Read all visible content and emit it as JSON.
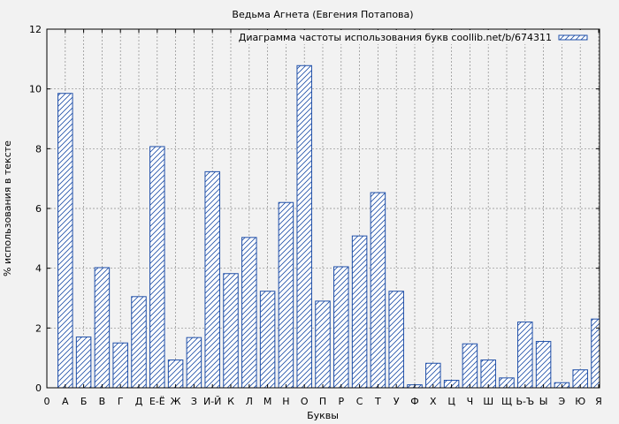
{
  "chart_data": {
    "type": "bar",
    "title": "Ведьма Агнета (Евгения Потапова)",
    "xlabel": "Буквы",
    "ylabel": "% использования в тексте",
    "legend": "Диаграмма частоты использования букв coollib.net/b/674311",
    "legend_position": "top-right",
    "grid": true,
    "ylim": [
      0,
      12
    ],
    "yticks": [
      0,
      2,
      4,
      6,
      8,
      10,
      12
    ],
    "x_start_label": "0",
    "categories": [
      "А",
      "Б",
      "В",
      "Г",
      "Д",
      "Е-Ё",
      "Ж",
      "З",
      "И-Й",
      "К",
      "Л",
      "М",
      "Н",
      "О",
      "П",
      "Р",
      "С",
      "Т",
      "У",
      "Ф",
      "Х",
      "Ц",
      "Ч",
      "Ш",
      "Щ",
      "Ь-Ъ",
      "Ы",
      "Э",
      "Ю",
      "Я"
    ],
    "values": [
      9.85,
      1.7,
      4.02,
      1.5,
      3.05,
      8.07,
      0.93,
      1.68,
      7.23,
      3.82,
      5.03,
      3.23,
      6.2,
      10.78,
      2.9,
      4.05,
      5.08,
      6.53,
      3.23,
      0.1,
      0.82,
      0.25,
      1.47,
      0.93,
      0.33,
      2.2,
      1.55,
      0.17,
      0.6,
      2.3
    ],
    "colors": {
      "bar_stroke": "#1f4fa8",
      "hatch": "#1f4fa8",
      "bar_fill": "#ffffff",
      "plot_background": "#f2f2f2",
      "grid": "#8a8a8a",
      "axis": "#000000"
    }
  }
}
